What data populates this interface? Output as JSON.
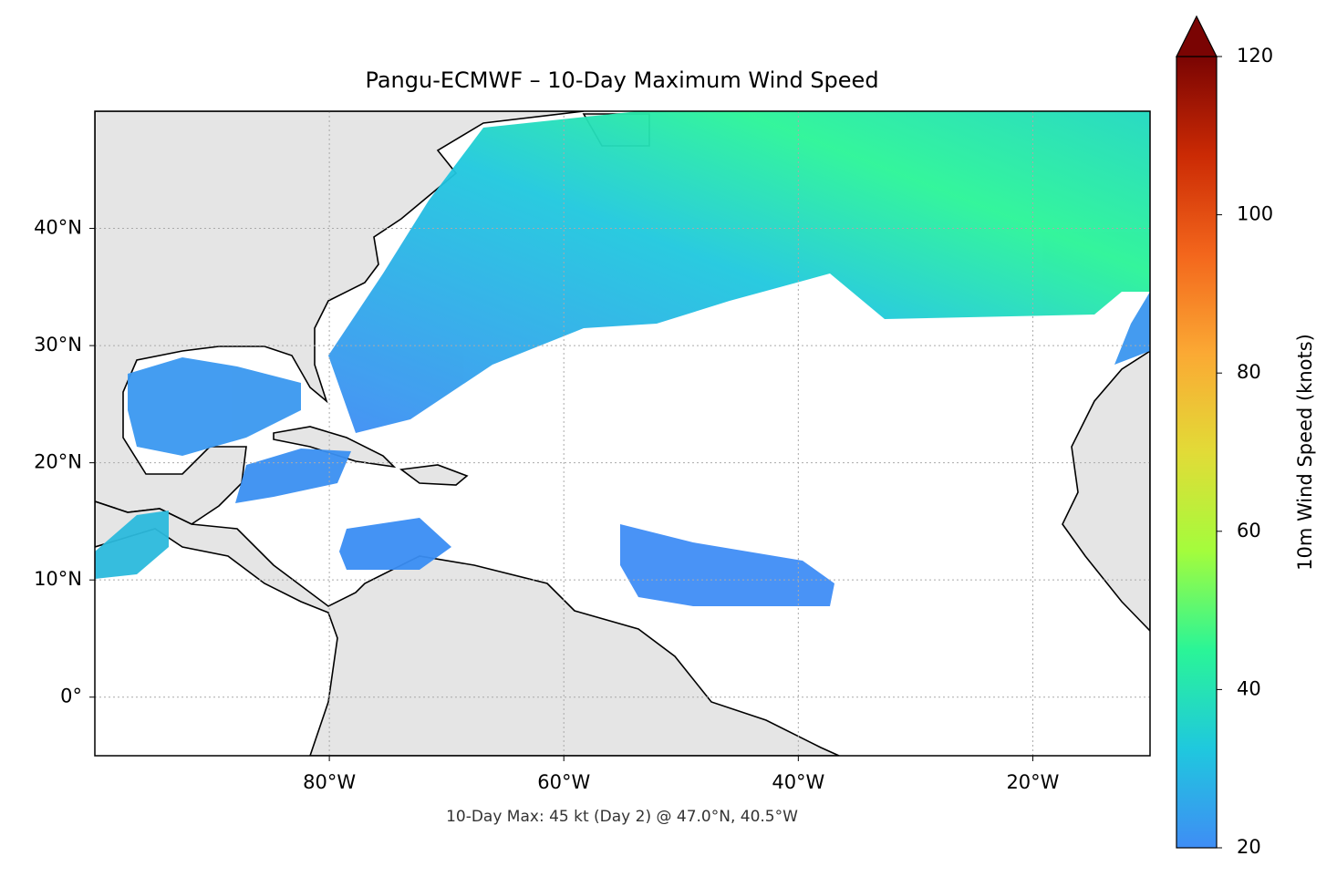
{
  "chart_data": {
    "type": "map",
    "title": "Pangu-ECMWF – 10-Day Maximum Wind Speed",
    "annotation": "10-Day Max: 45 kt (Day 2) @ 47.0°N, 40.5°W",
    "xlim": [
      -100,
      -10
    ],
    "ylim": [
      -5,
      50
    ],
    "xticks": [
      {
        "value": -80,
        "label": "80°W"
      },
      {
        "value": -60,
        "label": "60°W"
      },
      {
        "value": -40,
        "label": "40°W"
      },
      {
        "value": -20,
        "label": "20°W"
      }
    ],
    "yticks": [
      {
        "value": 0,
        "label": "0°"
      },
      {
        "value": 10,
        "label": "10°N"
      },
      {
        "value": 20,
        "label": "20°N"
      },
      {
        "value": 30,
        "label": "30°N"
      },
      {
        "value": 40,
        "label": "40°N"
      }
    ],
    "grid": true,
    "colorbar": {
      "label": "10m Wind Speed (knots)",
      "lim": [
        20,
        120
      ],
      "ticks": [
        20,
        40,
        60,
        80,
        100,
        120
      ],
      "extend": "max",
      "colors": [
        "#3f8df5",
        "#1fc8de",
        "#2af597",
        "#a4fc3c",
        "#e2db37",
        "#fba934",
        "#f3661c",
        "#cb2a04",
        "#7a0403"
      ]
    }
  }
}
